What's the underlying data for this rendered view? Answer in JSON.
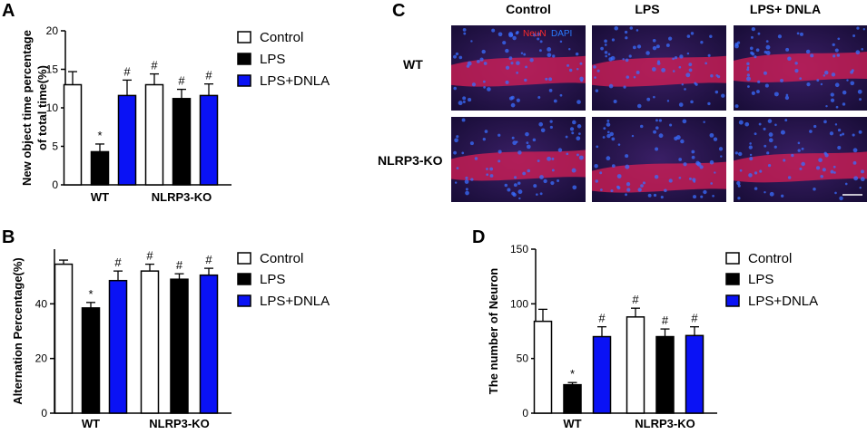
{
  "colors": {
    "control": "#ffffff",
    "lps": "#000000",
    "lps_dnla": "#0a12f5",
    "outline": "#000000"
  },
  "chart_data": [
    {
      "panel": "A",
      "type": "bar",
      "ylabel_lines": [
        "New object time percentage",
        "of total time(%)"
      ],
      "ylim": [
        0,
        20
      ],
      "yticks": [
        0,
        5,
        10,
        15,
        20
      ],
      "categories": [
        "WT",
        "NLRP3-KO"
      ],
      "series": [
        {
          "name": "Control",
          "values": [
            13.0,
            13.0
          ],
          "errors": [
            1.7,
            1.4
          ],
          "marks": [
            "",
            "#"
          ]
        },
        {
          "name": "LPS",
          "values": [
            4.3,
            11.2
          ],
          "errors": [
            1.0,
            1.2
          ],
          "marks": [
            "*",
            "#"
          ]
        },
        {
          "name": "LPS+DNLA",
          "values": [
            11.6,
            11.6
          ],
          "errors": [
            2.0,
            1.5
          ],
          "marks": [
            "#",
            "#"
          ]
        }
      ],
      "legend_position": "right"
    },
    {
      "panel": "B",
      "type": "bar",
      "ylabel_lines": [
        "Alternation Percentage(%)"
      ],
      "ylim": [
        0,
        60
      ],
      "yticks": [
        0,
        20,
        40
      ],
      "categories": [
        "WT",
        "NLRP3-KO"
      ],
      "series": [
        {
          "name": "Control",
          "values": [
            54.5,
            52.0
          ],
          "errors": [
            1.5,
            2.5
          ],
          "marks": [
            "",
            "#"
          ]
        },
        {
          "name": "LPS",
          "values": [
            38.5,
            49.0
          ],
          "errors": [
            2.0,
            2.0
          ],
          "marks": [
            "*",
            "#"
          ]
        },
        {
          "name": "LPS+DNLA",
          "values": [
            48.5,
            50.5
          ],
          "errors": [
            3.5,
            2.5
          ],
          "marks": [
            "#",
            "#"
          ]
        }
      ],
      "legend_position": "right"
    },
    {
      "panel": "D",
      "type": "bar",
      "ylabel_lines": [
        "The number of Neuron"
      ],
      "ylim": [
        0,
        150
      ],
      "yticks": [
        0,
        50,
        100,
        150
      ],
      "categories": [
        "WT",
        "NLRP3-KO"
      ],
      "series": [
        {
          "name": "Control",
          "values": [
            84.0,
            88.0
          ],
          "errors": [
            11.0,
            8.0
          ],
          "marks": [
            "",
            "#"
          ]
        },
        {
          "name": "LPS",
          "values": [
            26.0,
            70.0
          ],
          "errors": [
            2.0,
            7.0
          ],
          "marks": [
            "*",
            "#"
          ]
        },
        {
          "name": "LPS+DNLA",
          "values": [
            70.0,
            71.0
          ],
          "errors": [
            9.0,
            8.0
          ],
          "marks": [
            "#",
            "#"
          ]
        }
      ],
      "legend_position": "right"
    }
  ],
  "micrograph": {
    "panel": "C",
    "columns": [
      "Control",
      "LPS",
      "LPS+ DNLA"
    ],
    "rows": [
      "WT",
      "NLRP3-KO"
    ],
    "stain": {
      "neun": "NeuN",
      "dapi": "DAPI",
      "neun_color": "#ff2a2a",
      "dapi_color": "#2a7bff"
    }
  }
}
